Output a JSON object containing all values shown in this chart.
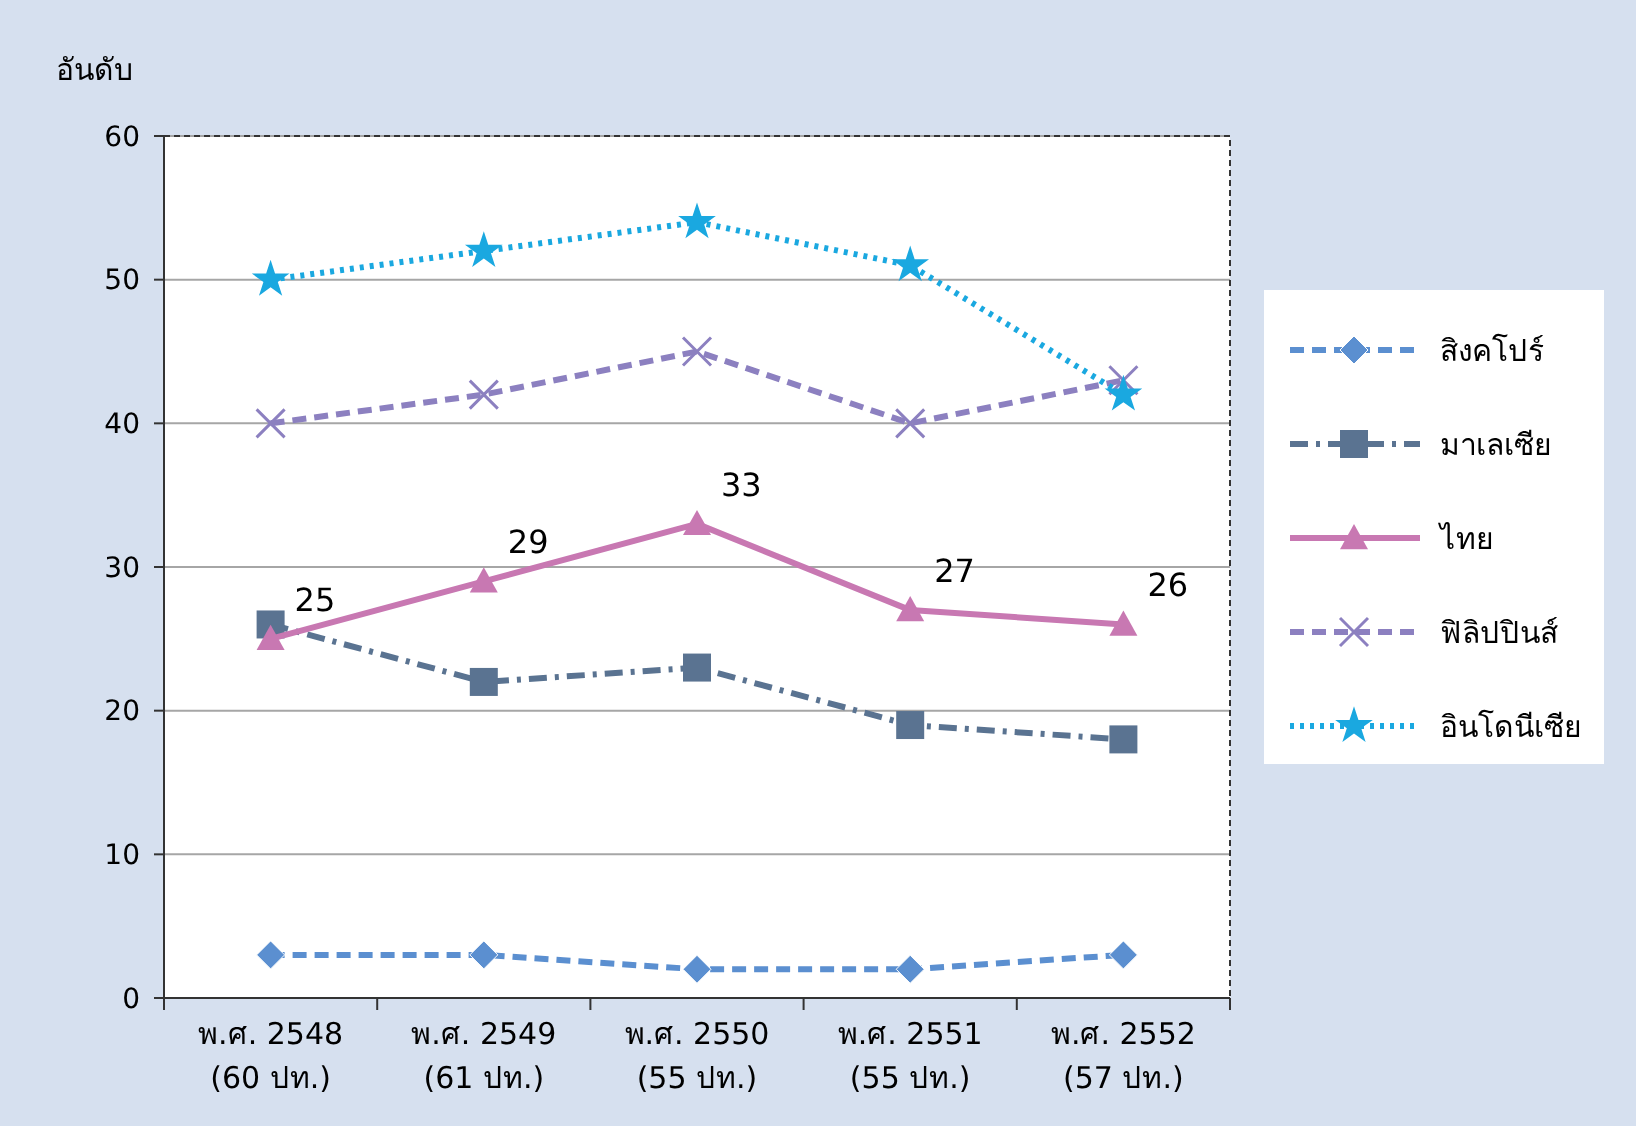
{
  "chart_data": {
    "type": "line",
    "ylabel": "อันดับ",
    "categories": [
      "พ.ศ. 2548\n(60 ปท.)",
      "พ.ศ. 2549\n(61 ปท.)",
      "พ.ศ. 2550\n(55 ปท.)",
      "พ.ศ. 2551\n(55 ปท.)",
      "พ.ศ. 2552\n(57 ปท.)"
    ],
    "ylim": [
      0,
      60
    ],
    "yticks": [
      0,
      10,
      20,
      30,
      40,
      50,
      60
    ],
    "grid": "y",
    "legend": "right",
    "series": [
      {
        "name": "สิงคโปร์",
        "color": "#5b8fd0",
        "values": [
          3,
          3,
          2,
          2,
          3
        ],
        "marker": "diamond",
        "line_style": "dashed"
      },
      {
        "name": "มาเลเซีย",
        "color": "#5a7391",
        "values": [
          26,
          22,
          23,
          19,
          18
        ],
        "marker": "square",
        "line_style": "dashdot"
      },
      {
        "name": "ไทย",
        "color": "#c878b2",
        "values": [
          25,
          29,
          33,
          27,
          26
        ],
        "marker": "triangle",
        "line_style": "solid",
        "value_labels": [
          "25",
          "29",
          "33",
          "27",
          "26"
        ]
      },
      {
        "name": "ฟิลิปปินส์",
        "color": "#8c80c0",
        "values": [
          40,
          42,
          45,
          40,
          43
        ],
        "marker": "cross",
        "line_style": "dashed"
      },
      {
        "name": "อินโดนีเซีย",
        "color": "#1aa8e0",
        "values": [
          50,
          52,
          54,
          51,
          42
        ],
        "marker": "star",
        "line_style": "dotted"
      }
    ]
  }
}
